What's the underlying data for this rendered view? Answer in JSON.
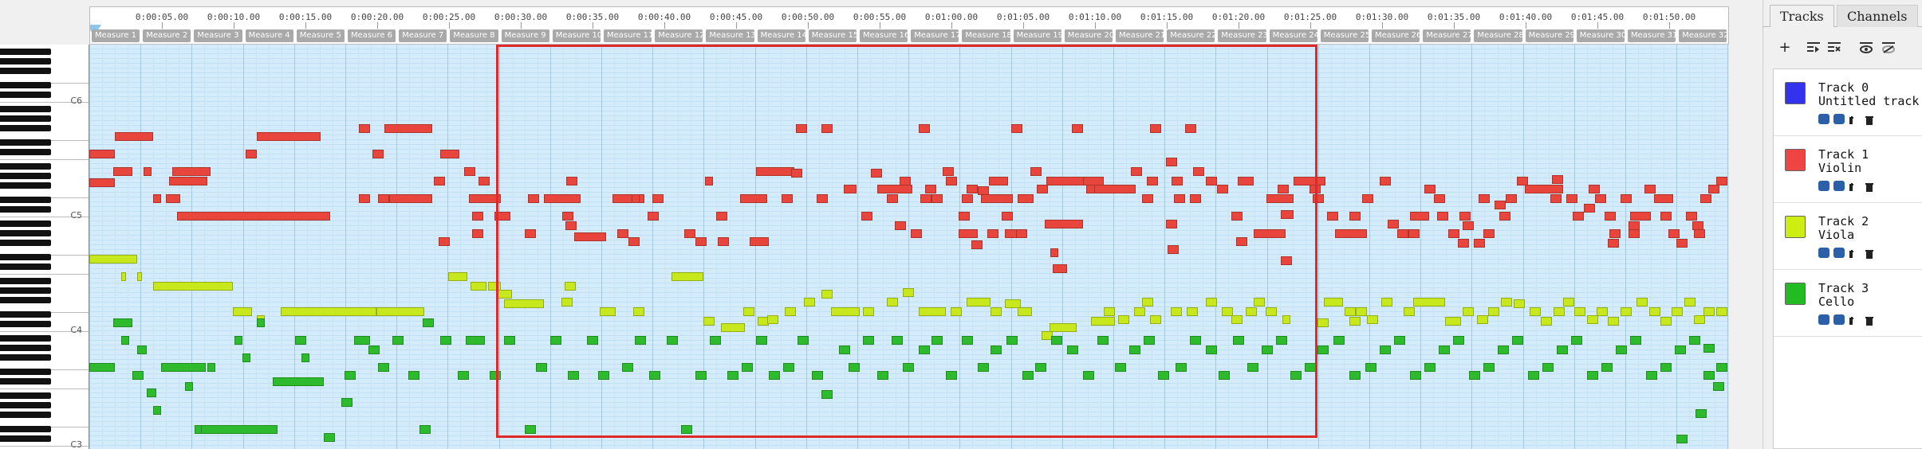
{
  "ruler": {
    "times": [
      "0:00:05.00",
      "0:00:10.00",
      "0:00:15.00",
      "0:00:20.00",
      "0:00:25.00",
      "0:00:30.00",
      "0:00:35.00",
      "0:00:40.00",
      "0:00:45.00",
      "0:00:50.00",
      "0:00:55.00",
      "0:01:00.00",
      "0:01:05.00",
      "0:01:10.00",
      "0:01:15.00",
      "0:01:20.00",
      "0:01:25.00",
      "0:01:30.00",
      "0:01:35.00",
      "0:01:40.00",
      "0:01:45.00",
      "0:01:50.00"
    ],
    "measures": [
      "Measure 1",
      "Measure 2",
      "Measure 3",
      "Measure 4",
      "Measure 5",
      "Measure 6",
      "Measure 7",
      "Measure 8",
      "Measure 9",
      "Measure 10",
      "Measure 11",
      "Measure 12",
      "Measure 13",
      "Measure 14",
      "Measure 15",
      "Measure 16",
      "Measure 17",
      "Measure 18",
      "Measure 19",
      "Measure 20",
      "Measure 21",
      "Measure 22",
      "Measure 23",
      "Measure 24",
      "Measure 25",
      "Measure 26",
      "Measure 27",
      "Measure 28",
      "Measure 29",
      "Measure 30",
      "Measure 31",
      "Measure 32"
    ]
  },
  "keyboard": {
    "octave_labels": [
      "C6",
      "C5",
      "C4",
      "C3"
    ]
  },
  "panel": {
    "tabs": [
      "Tracks",
      "Channels"
    ],
    "active_tab": "Tracks",
    "toolbar_icons": [
      "add-track-icon",
      "track-options-icon",
      "track-remove-icon",
      "show-all-icon",
      "hide-all-icon"
    ]
  },
  "tracks": [
    {
      "name": "Track 0",
      "instrument": "Untitled track",
      "color": "#3333ee"
    },
    {
      "name": "Track 1",
      "instrument": "Violin",
      "color": "#ee4444"
    },
    {
      "name": "Track 2",
      "instrument": "Viola",
      "color": "#ccee11"
    },
    {
      "name": "Track 3",
      "instrument": "Cello",
      "color": "#22bb22"
    }
  ],
  "colors": {
    "violin": "#e8453c",
    "viola": "#c8e81e",
    "cello": "#2dbb2d",
    "selection": "#e02a2a"
  }
}
